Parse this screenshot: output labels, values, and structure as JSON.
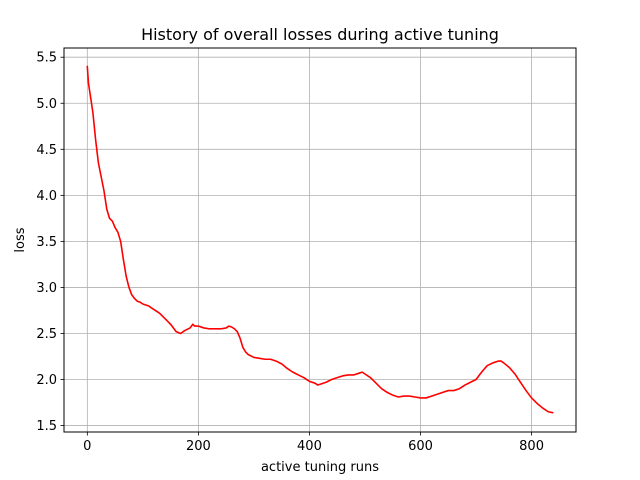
{
  "chart_data": {
    "type": "line",
    "title": "History of overall losses during active tuning",
    "xlabel": "active tuning runs",
    "ylabel": "loss",
    "xlim": [
      -42,
      880
    ],
    "ylim": [
      1.43,
      5.6
    ],
    "xticks": [
      0,
      200,
      400,
      600,
      800
    ],
    "yticks": [
      1.5,
      2.0,
      2.5,
      3.0,
      3.5,
      4.0,
      4.5,
      5.0,
      5.5
    ],
    "xtick_labels": [
      "0",
      "200",
      "400",
      "600",
      "800"
    ],
    "ytick_labels": [
      "1.5",
      "2.0",
      "2.5",
      "3.0",
      "3.5",
      "4.0",
      "4.5",
      "5.0",
      "5.5"
    ],
    "grid": true,
    "series": [
      {
        "color": "#ff0000",
        "x": [
          0,
          2,
          5,
          10,
          15,
          20,
          30,
          35,
          40,
          45,
          50,
          55,
          60,
          65,
          70,
          75,
          80,
          85,
          90,
          95,
          100,
          110,
          120,
          130,
          140,
          150,
          160,
          168,
          175,
          185,
          190,
          193,
          200,
          210,
          220,
          230,
          240,
          250,
          255,
          260,
          265,
          270,
          275,
          280,
          285,
          290,
          300,
          310,
          320,
          330,
          340,
          350,
          360,
          370,
          380,
          390,
          400,
          410,
          415,
          420,
          430,
          440,
          450,
          460,
          470,
          480,
          490,
          495,
          500,
          510,
          520,
          530,
          540,
          550,
          560,
          570,
          580,
          590,
          600,
          610,
          620,
          630,
          640,
          650,
          660,
          670,
          680,
          690,
          700,
          710,
          720,
          730,
          740,
          745,
          750,
          760,
          770,
          780,
          790,
          800,
          810,
          820,
          830,
          838
        ],
        "y": [
          5.4,
          5.22,
          5.1,
          4.9,
          4.6,
          4.35,
          4.05,
          3.85,
          3.75,
          3.72,
          3.65,
          3.6,
          3.5,
          3.3,
          3.12,
          3.0,
          2.92,
          2.88,
          2.85,
          2.84,
          2.82,
          2.8,
          2.76,
          2.72,
          2.66,
          2.6,
          2.52,
          2.5,
          2.53,
          2.56,
          2.6,
          2.58,
          2.58,
          2.56,
          2.55,
          2.55,
          2.55,
          2.56,
          2.58,
          2.57,
          2.55,
          2.52,
          2.45,
          2.35,
          2.3,
          2.27,
          2.24,
          2.23,
          2.22,
          2.22,
          2.2,
          2.17,
          2.12,
          2.08,
          2.05,
          2.02,
          1.98,
          1.96,
          1.94,
          1.95,
          1.97,
          2.0,
          2.02,
          2.04,
          2.05,
          2.05,
          2.07,
          2.08,
          2.06,
          2.02,
          1.96,
          1.9,
          1.86,
          1.83,
          1.81,
          1.82,
          1.82,
          1.81,
          1.8,
          1.8,
          1.82,
          1.84,
          1.86,
          1.88,
          1.88,
          1.9,
          1.94,
          1.97,
          2.0,
          2.08,
          2.15,
          2.18,
          2.2,
          2.2,
          2.18,
          2.13,
          2.06,
          1.97,
          1.88,
          1.8,
          1.74,
          1.69,
          1.65,
          1.64
        ]
      }
    ]
  }
}
